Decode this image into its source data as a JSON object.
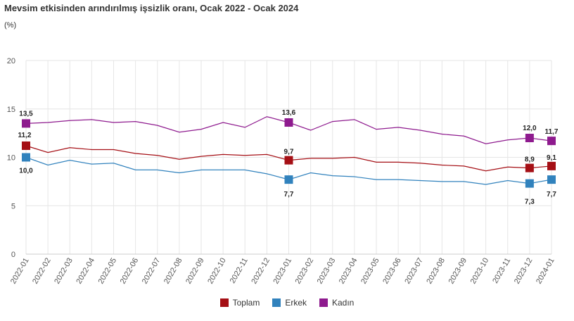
{
  "title": "Mevsim etkisinden arındırılmış işsizlik oranı, Ocak 2022 - Ocak 2024",
  "subtitle": "(%)",
  "chart_data": {
    "type": "line",
    "categories": [
      "2022-01",
      "2022-02",
      "2022-03",
      "2022-04",
      "2022-05",
      "2022-06",
      "2022-07",
      "2022-08",
      "2022-09",
      "2022-10",
      "2022-11",
      "2022-12",
      "2023-01",
      "2023-02",
      "2023-03",
      "2023-04",
      "2023-05",
      "2023-06",
      "2023-07",
      "2023-08",
      "2023-09",
      "2023-10",
      "2023-11",
      "2023-12",
      "2024-01"
    ],
    "ylim": [
      0,
      20
    ],
    "yticks": [
      "0",
      "5",
      "10",
      "15",
      "20"
    ],
    "grid": true,
    "legend_position": "bottom",
    "series": [
      {
        "name": "Toplam",
        "color": "#a50f15",
        "values": [
          11.2,
          10.5,
          11.0,
          10.8,
          10.8,
          10.4,
          10.2,
          9.8,
          10.1,
          10.3,
          10.2,
          10.3,
          9.7,
          9.9,
          9.9,
          10.0,
          9.5,
          9.5,
          9.4,
          9.2,
          9.1,
          8.6,
          9.0,
          8.9,
          9.1
        ],
        "labels": {
          "0": "11,2",
          "12": "9,7",
          "23": "8,9",
          "24": "9,1"
        }
      },
      {
        "name": "Erkek",
        "color": "#3182bd",
        "values": [
          10.0,
          9.2,
          9.7,
          9.3,
          9.4,
          8.7,
          8.7,
          8.4,
          8.7,
          8.7,
          8.7,
          8.3,
          7.7,
          8.4,
          8.1,
          8.0,
          7.7,
          7.7,
          7.6,
          7.5,
          7.5,
          7.2,
          7.6,
          7.3,
          7.7
        ],
        "labels": {
          "0": "10,0",
          "12": "7,7",
          "23": "7,3",
          "24": "7,7"
        }
      },
      {
        "name": "Kadın",
        "color": "#8e1a8e",
        "values": [
          13.5,
          13.6,
          13.8,
          13.9,
          13.6,
          13.7,
          13.3,
          12.6,
          12.9,
          13.6,
          13.1,
          14.2,
          13.6,
          12.8,
          13.7,
          13.9,
          12.9,
          13.1,
          12.8,
          12.4,
          12.2,
          11.4,
          11.8,
          12.0,
          11.7
        ],
        "labels": {
          "0": "13,5",
          "12": "13,6",
          "23": "12,0",
          "24": "11,7"
        }
      }
    ]
  }
}
